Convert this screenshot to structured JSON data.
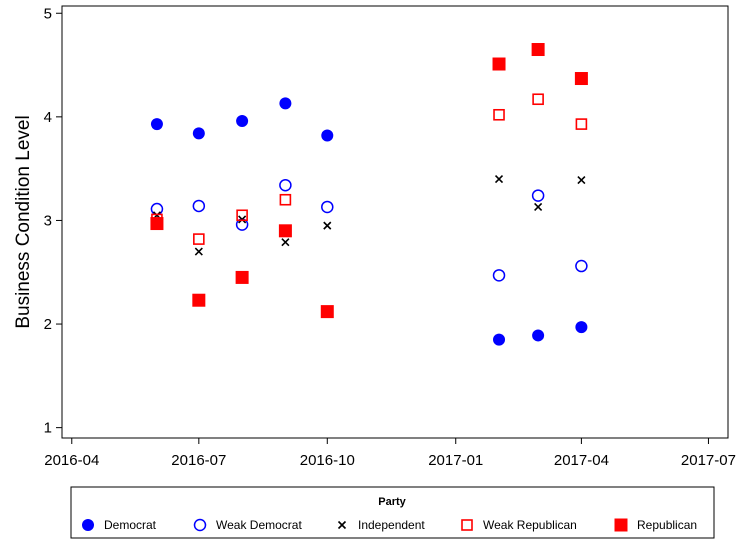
{
  "chart_data": {
    "type": "scatter",
    "title": "",
    "xlabel": "",
    "ylabel": "Business Condition Level",
    "x_ticks": [
      "2016-04",
      "2016-07",
      "2016-10",
      "2017-01",
      "2017-04",
      "2017-07"
    ],
    "y_ticks": [
      "1",
      "2",
      "3",
      "4",
      "5"
    ],
    "xlim": [
      "2016-03-25",
      "2017-07-15"
    ],
    "ylim": [
      0.9,
      5.07
    ],
    "grid": false,
    "legend": {
      "title": "Party",
      "placement": "bottom"
    },
    "series": [
      {
        "name": "Democrat",
        "marker": "filled-circle",
        "color": "#0000ff",
        "points": [
          {
            "x": "2016-06-01",
            "y": 3.93
          },
          {
            "x": "2016-07-01",
            "y": 3.84
          },
          {
            "x": "2016-08-01",
            "y": 3.96
          },
          {
            "x": "2016-09-01",
            "y": 4.13
          },
          {
            "x": "2016-10-01",
            "y": 3.82
          },
          {
            "x": "2017-02-01",
            "y": 1.85
          },
          {
            "x": "2017-03-01",
            "y": 1.89
          },
          {
            "x": "2017-04-01",
            "y": 1.97
          }
        ]
      },
      {
        "name": "Weak Democrat",
        "marker": "open-circle",
        "color": "#0000ff",
        "points": [
          {
            "x": "2016-06-01",
            "y": 3.11
          },
          {
            "x": "2016-07-01",
            "y": 3.14
          },
          {
            "x": "2016-08-01",
            "y": 2.96
          },
          {
            "x": "2016-09-01",
            "y": 3.34
          },
          {
            "x": "2016-10-01",
            "y": 3.13
          },
          {
            "x": "2017-02-01",
            "y": 2.47
          },
          {
            "x": "2017-03-01",
            "y": 3.24
          },
          {
            "x": "2017-04-01",
            "y": 2.56
          }
        ]
      },
      {
        "name": "Independent",
        "marker": "cross",
        "color": "#000000",
        "points": [
          {
            "x": "2016-06-01",
            "y": 3.05
          },
          {
            "x": "2016-07-01",
            "y": 2.7
          },
          {
            "x": "2016-08-01",
            "y": 3.01
          },
          {
            "x": "2016-09-01",
            "y": 2.79
          },
          {
            "x": "2016-10-01",
            "y": 2.95
          },
          {
            "x": "2017-02-01",
            "y": 3.4
          },
          {
            "x": "2017-03-01",
            "y": 3.13
          },
          {
            "x": "2017-04-01",
            "y": 3.39
          }
        ]
      },
      {
        "name": "Weak Republican",
        "marker": "open-square",
        "color": "#ff0000",
        "points": [
          {
            "x": "2016-06-01",
            "y": 3.01
          },
          {
            "x": "2016-07-01",
            "y": 2.82
          },
          {
            "x": "2016-08-01",
            "y": 3.05
          },
          {
            "x": "2016-09-01",
            "y": 3.2
          },
          {
            "x": "2017-02-01",
            "y": 4.02
          },
          {
            "x": "2017-03-01",
            "y": 4.17
          },
          {
            "x": "2017-04-01",
            "y": 3.93
          }
        ]
      },
      {
        "name": "Republican",
        "marker": "filled-square",
        "color": "#ff0000",
        "points": [
          {
            "x": "2016-06-01",
            "y": 2.97
          },
          {
            "x": "2016-07-01",
            "y": 2.23
          },
          {
            "x": "2016-08-01",
            "y": 2.45
          },
          {
            "x": "2016-09-01",
            "y": 2.9
          },
          {
            "x": "2016-10-01",
            "y": 2.12
          },
          {
            "x": "2017-02-01",
            "y": 4.51
          },
          {
            "x": "2017-03-01",
            "y": 4.65
          },
          {
            "x": "2017-04-01",
            "y": 4.37
          }
        ]
      }
    ]
  }
}
